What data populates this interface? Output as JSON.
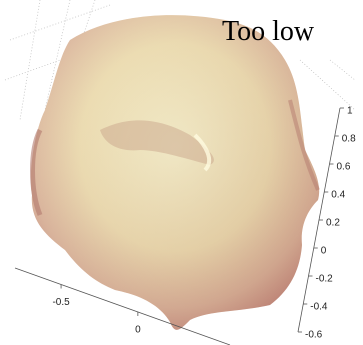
{
  "chart_data": {
    "type": "surface",
    "title": "Too low",
    "xlim": [
      -0.8,
      0.6
    ],
    "xticks": [
      -0.5,
      0
    ],
    "ylim": [
      -0.6,
      1
    ],
    "yticks": [
      1,
      0.8,
      0.6,
      0.4,
      0.2,
      0,
      -0.2,
      -0.4,
      -0.6
    ]
  }
}
